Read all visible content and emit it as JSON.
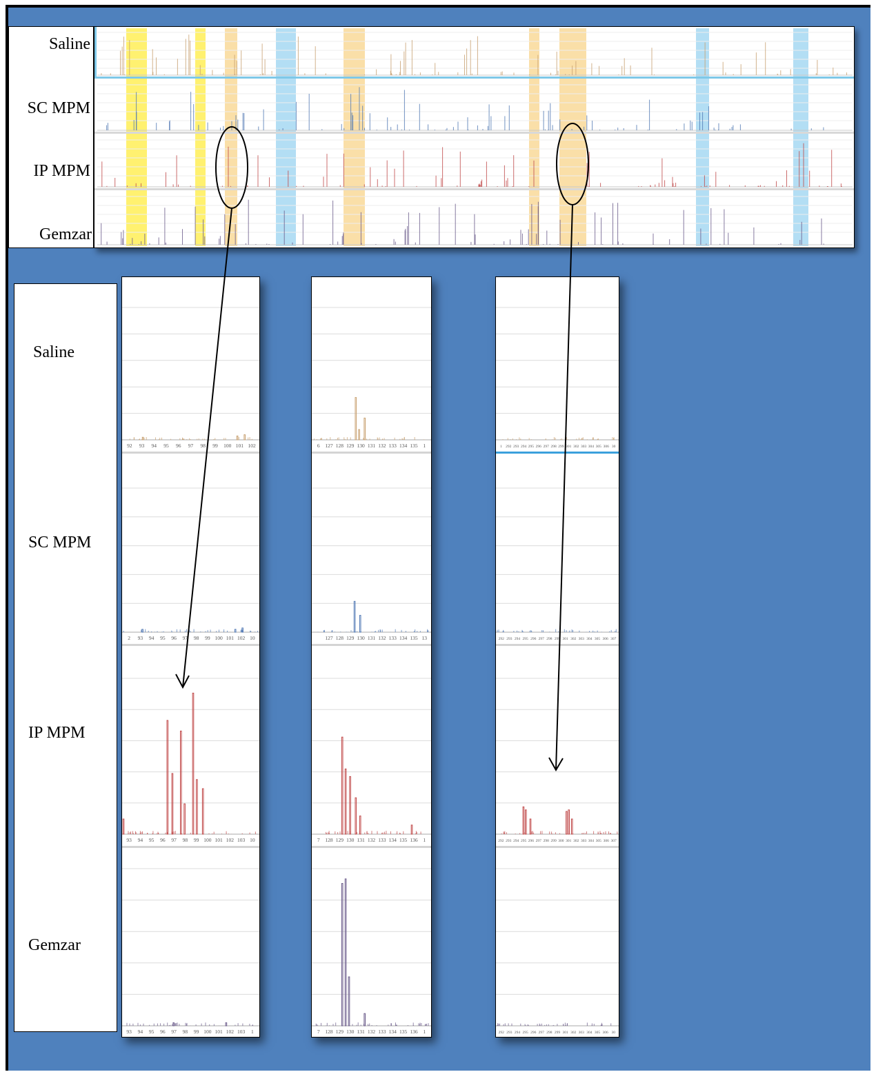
{
  "chart_data": [
    {
      "type": "bar",
      "title": "",
      "rows": [
        "Saline",
        "SC MPM",
        "IP  MPM",
        "Gemzar"
      ],
      "row_colors": {
        "Saline": "#c8a070",
        "SC MPM": "#5078b4",
        "IP  MPM": "#c04848",
        "Gemzar": "#6a5a8a"
      },
      "highlight_regions": [
        {
          "color": "yellow"
        },
        {
          "color": "yellow"
        },
        {
          "color": "orange"
        },
        {
          "color": "blue"
        },
        {
          "color": "orange"
        },
        {
          "color": "orange"
        },
        {
          "color": "orange"
        },
        {
          "color": "blue"
        },
        {
          "color": "blue"
        }
      ]
    },
    {
      "type": "bar",
      "x_tick_labels": {
        "Saline": [
          "92",
          "93",
          "94",
          "95",
          "96",
          "97",
          "98",
          "99",
          "100",
          "101",
          "102"
        ],
        "SC MPM": [
          "2",
          "93",
          "94",
          "95",
          "96",
          "97",
          "98",
          "99",
          "100",
          "101",
          "102",
          "10"
        ],
        "IP  MPM": [
          "93",
          "94",
          "95",
          "96",
          "97",
          "98",
          "99",
          "100",
          "101",
          "102",
          "103",
          "10"
        ],
        "Gemzar": [
          "93",
          "94",
          "95",
          "96",
          "97",
          "98",
          "99",
          "100",
          "101",
          "102",
          "103",
          "1"
        ]
      },
      "peaks": {
        "Saline": [
          {
            "x": 93.4,
            "y": 2
          },
          {
            "x": 101.2,
            "y": 3
          },
          {
            "x": 101.8,
            "y": 4
          }
        ],
        "SC MPM": [
          {
            "x": 93.2,
            "y": 2
          },
          {
            "x": 101.0,
            "y": 2
          },
          {
            "x": 101.6,
            "y": 3
          }
        ],
        "IP  MPM": [
          {
            "x": 96.6,
            "y": 75
          },
          {
            "x": 97.0,
            "y": 40
          },
          {
            "x": 97.7,
            "y": 68
          },
          {
            "x": 98.0,
            "y": 20
          },
          {
            "x": 98.7,
            "y": 93
          },
          {
            "x": 99.0,
            "y": 36
          },
          {
            "x": 99.5,
            "y": 30
          },
          {
            "x": 93.0,
            "y": 10
          }
        ],
        "Gemzar": [
          {
            "x": 97.1,
            "y": 2
          },
          {
            "x": 101.4,
            "y": 2
          }
        ]
      }
    },
    {
      "type": "bar",
      "x_tick_labels": {
        "Saline": [
          "6",
          "127",
          "128",
          "129",
          "130",
          "131",
          "132",
          "133",
          "134",
          "135",
          "1"
        ],
        "SC MPM": [
          "",
          "127",
          "128",
          "129",
          "130",
          "131",
          "132",
          "133",
          "134",
          "135",
          "13"
        ],
        "IP  MPM": [
          "7",
          "128",
          "129",
          "130",
          "131",
          "132",
          "133",
          "134",
          "135",
          "136",
          "1"
        ],
        "Gemzar": [
          "7",
          "128",
          "129",
          "130",
          "131",
          "132",
          "133",
          "134",
          "135",
          "136",
          "1"
        ]
      },
      "peaks": {
        "Saline": [
          {
            "x": 129.8,
            "y": 33
          },
          {
            "x": 130.6,
            "y": 17
          },
          {
            "x": 130.1,
            "y": 8
          }
        ],
        "SC MPM": [
          {
            "x": 129.7,
            "y": 22
          },
          {
            "x": 130.2,
            "y": 12
          }
        ],
        "IP  MPM": [
          {
            "x": 129.6,
            "y": 64
          },
          {
            "x": 129.9,
            "y": 43
          },
          {
            "x": 130.3,
            "y": 38
          },
          {
            "x": 130.8,
            "y": 24
          },
          {
            "x": 131.2,
            "y": 12
          },
          {
            "x": 135.8,
            "y": 6
          }
        ],
        "Gemzar": [
          {
            "x": 129.6,
            "y": 93
          },
          {
            "x": 129.9,
            "y": 96
          },
          {
            "x": 130.2,
            "y": 32
          },
          {
            "x": 131.6,
            "y": 8
          }
        ]
      }
    },
    {
      "type": "bar",
      "x_tick_labels": {
        "Saline": [
          "1",
          "292",
          "293",
          "294",
          "295",
          "296",
          "297",
          "298",
          "299",
          "301",
          "302",
          "303",
          "304",
          "305",
          "306",
          "30"
        ],
        "SC MPM": [
          "292",
          "293",
          "294",
          "295",
          "296",
          "297",
          "298",
          "299",
          "301",
          "302",
          "303",
          "304",
          "305",
          "306",
          "307"
        ],
        "IP  MPM": [
          "292",
          "293",
          "294",
          "295",
          "296",
          "297",
          "298",
          "299",
          "300",
          "301",
          "302",
          "303",
          "304",
          "305",
          "306",
          "307"
        ],
        "Gemzar": [
          "292",
          "293",
          "294",
          "295",
          "296",
          "297",
          "298",
          "299",
          "301",
          "302",
          "303",
          "304",
          "305",
          "306",
          "30"
        ]
      },
      "peaks": {
        "Saline": [],
        "SC MPM": [],
        "IP  MPM": [
          {
            "x": 295.0,
            "y": 18
          },
          {
            "x": 295.3,
            "y": 16
          },
          {
            "x": 295.9,
            "y": 10
          },
          {
            "x": 300.6,
            "y": 15
          },
          {
            "x": 300.9,
            "y": 16
          },
          {
            "x": 301.3,
            "y": 10
          }
        ],
        "Gemzar": []
      }
    }
  ],
  "labels": {
    "top": [
      "Saline",
      "SC MPM",
      "IP  MPM",
      "Gemzar"
    ],
    "bottom": [
      "Saline",
      "SC MPM",
      "IP  MPM",
      "Gemzar"
    ]
  }
}
